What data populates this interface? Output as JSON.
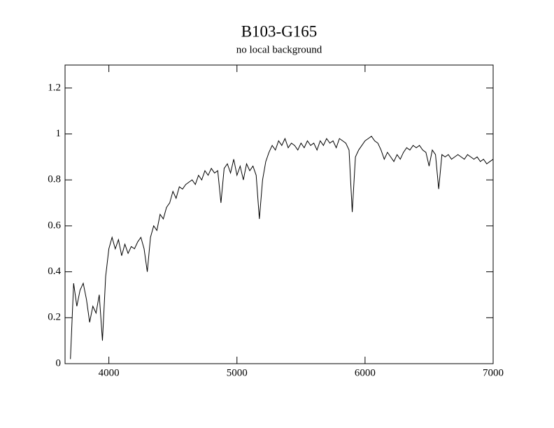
{
  "chart_data": {
    "type": "line",
    "title": "B103-G165",
    "subtitle": "no local background",
    "xlim": [
      3658,
      7000
    ],
    "ylim": [
      0,
      1.3
    ],
    "xticks": [
      4000,
      5000,
      6000,
      7000
    ],
    "yticks": [
      0,
      0.2,
      0.4,
      0.6,
      0.8,
      1,
      1.2
    ],
    "x": [
      3700,
      3725,
      3750,
      3775,
      3800,
      3825,
      3850,
      3875,
      3900,
      3925,
      3950,
      3975,
      4000,
      4025,
      4050,
      4075,
      4100,
      4125,
      4150,
      4175,
      4200,
      4225,
      4250,
      4275,
      4300,
      4325,
      4350,
      4375,
      4400,
      4425,
      4450,
      4475,
      4500,
      4525,
      4550,
      4575,
      4600,
      4625,
      4650,
      4675,
      4700,
      4725,
      4750,
      4775,
      4800,
      4825,
      4850,
      4875,
      4900,
      4925,
      4950,
      4975,
      5000,
      5025,
      5050,
      5075,
      5100,
      5125,
      5150,
      5175,
      5200,
      5225,
      5250,
      5275,
      5300,
      5325,
      5350,
      5375,
      5400,
      5425,
      5450,
      5475,
      5500,
      5525,
      5550,
      5575,
      5600,
      5625,
      5650,
      5675,
      5700,
      5725,
      5750,
      5775,
      5800,
      5825,
      5850,
      5875,
      5900,
      5925,
      5950,
      5975,
      6000,
      6025,
      6050,
      6075,
      6100,
      6125,
      6150,
      6175,
      6200,
      6225,
      6250,
      6275,
      6300,
      6325,
      6350,
      6375,
      6400,
      6425,
      6450,
      6475,
      6500,
      6525,
      6550,
      6575,
      6600,
      6625,
      6650,
      6675,
      6700,
      6725,
      6750,
      6775,
      6800,
      6825,
      6850,
      6875,
      6900,
      6925,
      6950,
      6975,
      7000
    ],
    "series": [
      {
        "color": "#000000",
        "values": [
          0.02,
          0.35,
          0.25,
          0.32,
          0.35,
          0.28,
          0.18,
          0.25,
          0.22,
          0.3,
          0.1,
          0.38,
          0.5,
          0.55,
          0.5,
          0.54,
          0.47,
          0.52,
          0.48,
          0.51,
          0.5,
          0.53,
          0.55,
          0.5,
          0.4,
          0.55,
          0.6,
          0.58,
          0.65,
          0.63,
          0.68,
          0.7,
          0.75,
          0.72,
          0.77,
          0.76,
          0.78,
          0.79,
          0.8,
          0.78,
          0.82,
          0.8,
          0.84,
          0.82,
          0.85,
          0.83,
          0.84,
          0.7,
          0.85,
          0.87,
          0.83,
          0.89,
          0.82,
          0.86,
          0.8,
          0.87,
          0.84,
          0.86,
          0.82,
          0.63,
          0.8,
          0.88,
          0.92,
          0.95,
          0.93,
          0.97,
          0.95,
          0.98,
          0.94,
          0.96,
          0.95,
          0.93,
          0.96,
          0.94,
          0.97,
          0.95,
          0.96,
          0.93,
          0.97,
          0.95,
          0.98,
          0.96,
          0.97,
          0.94,
          0.98,
          0.97,
          0.96,
          0.93,
          0.66,
          0.9,
          0.93,
          0.95,
          0.97,
          0.98,
          0.99,
          0.97,
          0.96,
          0.93,
          0.89,
          0.92,
          0.9,
          0.88,
          0.91,
          0.89,
          0.92,
          0.94,
          0.93,
          0.95,
          0.94,
          0.95,
          0.93,
          0.92,
          0.86,
          0.93,
          0.91,
          0.76,
          0.91,
          0.9,
          0.91,
          0.89,
          0.9,
          0.91,
          0.9,
          0.89,
          0.91,
          0.9,
          0.89,
          0.9,
          0.88,
          0.89,
          0.87,
          0.88,
          0.89
        ]
      }
    ]
  }
}
